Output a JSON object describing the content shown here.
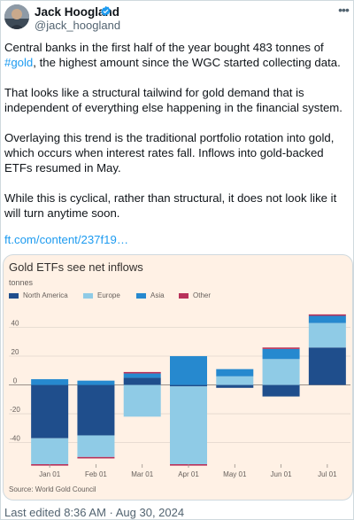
{
  "author": {
    "name": "Jack Hoogland",
    "handle": "@jack_hoogland"
  },
  "tweet": {
    "p1_before": "Central banks in the first half of the year bought 483 tonnes of ",
    "p1_hashtag": "#gold",
    "p1_after": ", the highest amount since the WGC started collecting data.",
    "p2": "That looks like a structural tailwind for gold demand that is independent of everything else happening in the financial system.",
    "p3": "Overlaying this trend is the traditional portfolio rotation into gold, which occurs when interest rates fall. Inflows into gold-backed ETFs resumed in May.",
    "p4": "While this is cyclical, rather than structural, it does not look like it will turn anytime soon.",
    "link": "ft.com/content/237f19…"
  },
  "footer": {
    "timestamp": "Last edited 8:36 AM · Aug 30, 2024"
  },
  "icons": {
    "verified": "verified-badge-icon",
    "more": "more-options-icon"
  },
  "colors": {
    "link": "#1d9bf0",
    "card_bg": "#fff1e5"
  },
  "chart_data": {
    "type": "bar",
    "stacked": true,
    "title": "Gold ETFs see net inflows",
    "unit": "tonnes",
    "source": "Source: World Gold Council",
    "categories": [
      "Jan 01",
      "Feb 01",
      "Mar 01",
      "Apr 01",
      "May 01",
      "Jun 01",
      "Jul 01"
    ],
    "ylim": [
      -55,
      52
    ],
    "yticks": [
      40,
      20,
      0,
      -20,
      -40
    ],
    "grid": true,
    "legend_position": "top-left",
    "series": [
      {
        "name": "North America",
        "color": "#1f4e8c",
        "values": [
          -37,
          -35,
          5,
          -1,
          -2,
          -8,
          26
        ]
      },
      {
        "name": "Europe",
        "color": "#8fcbe6",
        "values": [
          -18,
          -15,
          -22,
          -54,
          6,
          18,
          17
        ]
      },
      {
        "name": "Asia",
        "color": "#2689cf",
        "values": [
          4,
          3,
          3,
          20,
          5,
          7,
          5
        ]
      },
      {
        "name": "Other",
        "color": "#b8325a",
        "values": [
          -1,
          -1,
          1,
          -1,
          0,
          1,
          1
        ]
      }
    ]
  }
}
